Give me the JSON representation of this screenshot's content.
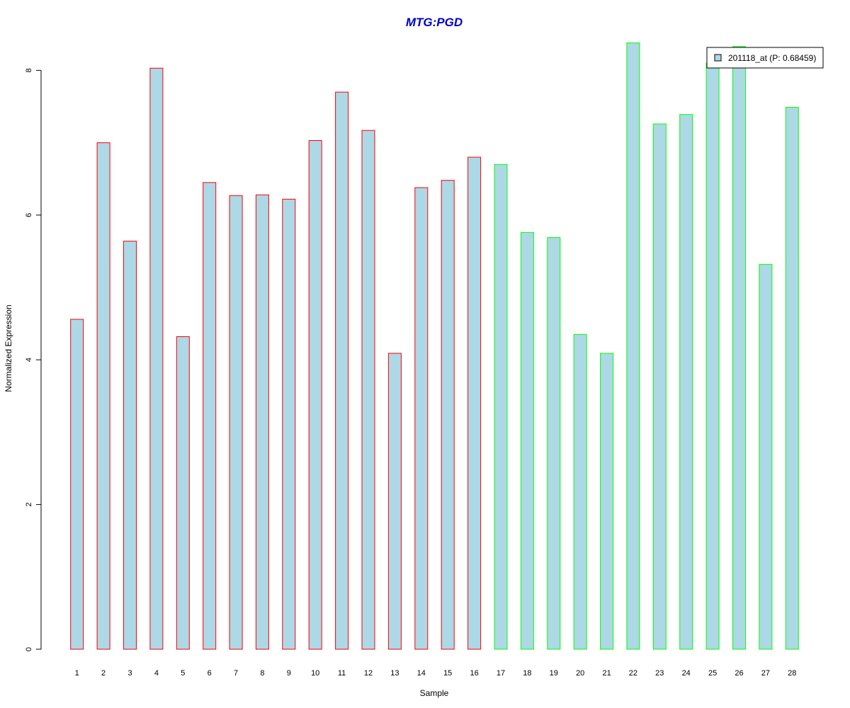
{
  "chart_data": {
    "type": "bar",
    "title": "MTG:PGD",
    "xlabel": "Sample",
    "ylabel": "Normalized Expression",
    "ylim": [
      0,
      8.4
    ],
    "yticks": [
      0,
      2,
      4,
      6,
      8
    ],
    "categories": [
      "1",
      "2",
      "3",
      "4",
      "5",
      "6",
      "7",
      "8",
      "9",
      "10",
      "11",
      "12",
      "13",
      "14",
      "15",
      "16",
      "17",
      "18",
      "19",
      "20",
      "21",
      "22",
      "23",
      "24",
      "25",
      "26",
      "27",
      "28"
    ],
    "values": [
      4.56,
      7.0,
      5.64,
      8.03,
      4.32,
      6.45,
      6.27,
      6.28,
      6.22,
      7.03,
      7.7,
      7.17,
      4.09,
      6.38,
      6.48,
      6.8,
      6.7,
      5.76,
      5.69,
      4.35,
      4.09,
      8.38,
      7.26,
      7.39,
      8.1,
      8.33,
      5.32,
      7.49
    ],
    "groups": [
      "red",
      "red",
      "red",
      "red",
      "red",
      "red",
      "red",
      "red",
      "red",
      "red",
      "red",
      "red",
      "red",
      "red",
      "red",
      "red",
      "green",
      "green",
      "green",
      "green",
      "green",
      "green",
      "green",
      "green",
      "green",
      "green",
      "green",
      "green"
    ],
    "legend": {
      "label": "201118_at (P: 0.68459)",
      "position": "top-right"
    },
    "colors": {
      "bar_fill": "#add8e6",
      "group_red": "#ff0000",
      "group_green": "#00ff00",
      "title": "#0000cd",
      "axis": "#000000"
    }
  }
}
